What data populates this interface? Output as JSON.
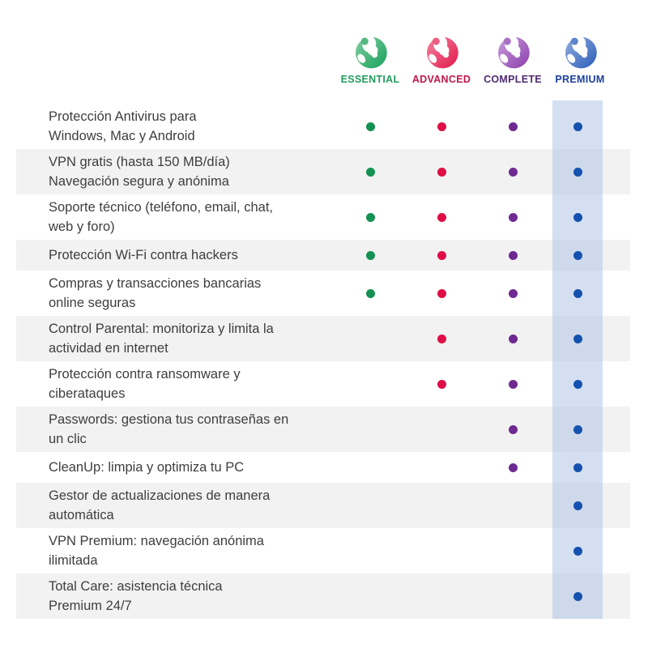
{
  "chart_data": {
    "type": "table",
    "title": "",
    "columns": [
      {
        "name": "ESSENTIAL",
        "label_color": "#1f9c5f",
        "dot_color": "#149152",
        "logo": {
          "light": "#83cea2",
          "base": "#17a05a",
          "ear": "#52b87f"
        }
      },
      {
        "name": "ADVANCED",
        "label_color": "#c21849",
        "dot_color": "#e00e46",
        "logo": {
          "light": "#f286a0",
          "base": "#e2164a",
          "ear": "#ec5f7f"
        }
      },
      {
        "name": "COMPLETE",
        "label_color": "#4f2a72",
        "dot_color": "#6e2a90",
        "logo": {
          "light": "#c9a0dc",
          "base": "#8a3cab",
          "ear": "#a970c4"
        }
      },
      {
        "name": "PREMIUM",
        "label_color": "#1c409b",
        "dot_color": "#1552af",
        "logo": {
          "light": "#93aede",
          "base": "#2a5cb8",
          "ear": "#5e84cc"
        }
      }
    ],
    "rows": [
      {
        "feature_lines": [
          "Protección Antivirus para",
          "Windows, Mac y Android"
        ],
        "included": [
          true,
          true,
          true,
          true
        ]
      },
      {
        "feature_lines": [
          "VPN gratis (hasta 150 MB/día)",
          "Navegación segura y anónima"
        ],
        "included": [
          true,
          true,
          true,
          true
        ]
      },
      {
        "feature_lines": [
          "Soporte técnico (teléfono, email, chat,",
          "web y foro)"
        ],
        "included": [
          true,
          true,
          true,
          true
        ]
      },
      {
        "feature_lines": [
          "Protección Wi-Fi contra hackers"
        ],
        "included": [
          true,
          true,
          true,
          true
        ]
      },
      {
        "feature_lines": [
          "Compras y transacciones bancarias",
          "online seguras"
        ],
        "included": [
          true,
          true,
          true,
          true
        ]
      },
      {
        "feature_lines": [
          "Control Parental: monitoriza y limita la",
          "actividad en internet"
        ],
        "included": [
          false,
          true,
          true,
          true
        ]
      },
      {
        "feature_lines": [
          "Protección contra ransomware y",
          "ciberataques"
        ],
        "included": [
          false,
          true,
          true,
          true
        ]
      },
      {
        "feature_lines": [
          "Passwords: gestiona tus contraseñas en",
          "un clic"
        ],
        "included": [
          false,
          false,
          true,
          true
        ]
      },
      {
        "feature_lines": [
          "CleanUp: limpia y optimiza tu PC"
        ],
        "included": [
          false,
          false,
          true,
          true
        ]
      },
      {
        "feature_lines": [
          "Gestor de actualizaciones de manera",
          "automática"
        ],
        "included": [
          false,
          false,
          false,
          true
        ]
      },
      {
        "feature_lines": [
          "VPN Premium: navegación anónima",
          "ilimitada"
        ],
        "included": [
          false,
          false,
          false,
          true
        ]
      },
      {
        "feature_lines": [
          "Total Care: asistencia técnica",
          "Premium 24/7"
        ],
        "included": [
          false,
          false,
          false,
          true
        ]
      }
    ],
    "layout": {
      "stripe_color": "#f2f2f2",
      "premium_band_color": "#b0c7e6",
      "text_color": "#3e3e3e"
    }
  }
}
